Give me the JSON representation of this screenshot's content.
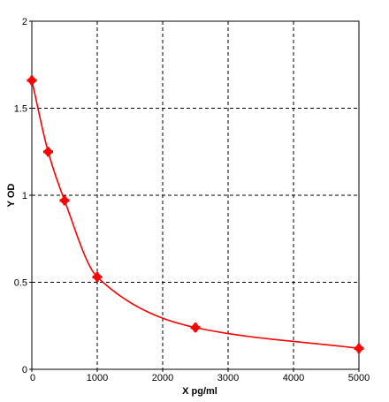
{
  "chart_data": {
    "type": "scatter",
    "title": "",
    "xlabel": "X pg/ml",
    "ylabel": "Y OD",
    "xlim": [
      0,
      5000
    ],
    "ylim": [
      0,
      2
    ],
    "x_ticks": [
      0,
      1000,
      2000,
      3000,
      4000,
      5000
    ],
    "y_ticks": [
      0,
      0.5,
      1,
      1.5,
      2
    ],
    "x_tick_labels": [
      "0",
      "1000",
      "2000",
      "3000",
      "4000",
      "5000"
    ],
    "y_tick_labels": [
      "0",
      "0.5",
      "1",
      "1.5",
      "2"
    ],
    "grid": true,
    "points": [
      {
        "x": 0,
        "y": 1.66
      },
      {
        "x": 250,
        "y": 1.25
      },
      {
        "x": 500,
        "y": 0.97
      },
      {
        "x": 1000,
        "y": 0.53
      },
      {
        "x": 2500,
        "y": 0.24
      },
      {
        "x": 5000,
        "y": 0.12
      }
    ],
    "point_color": "#ff0000",
    "curve_color": "#ff0000",
    "curve": "smooth fit through points"
  }
}
